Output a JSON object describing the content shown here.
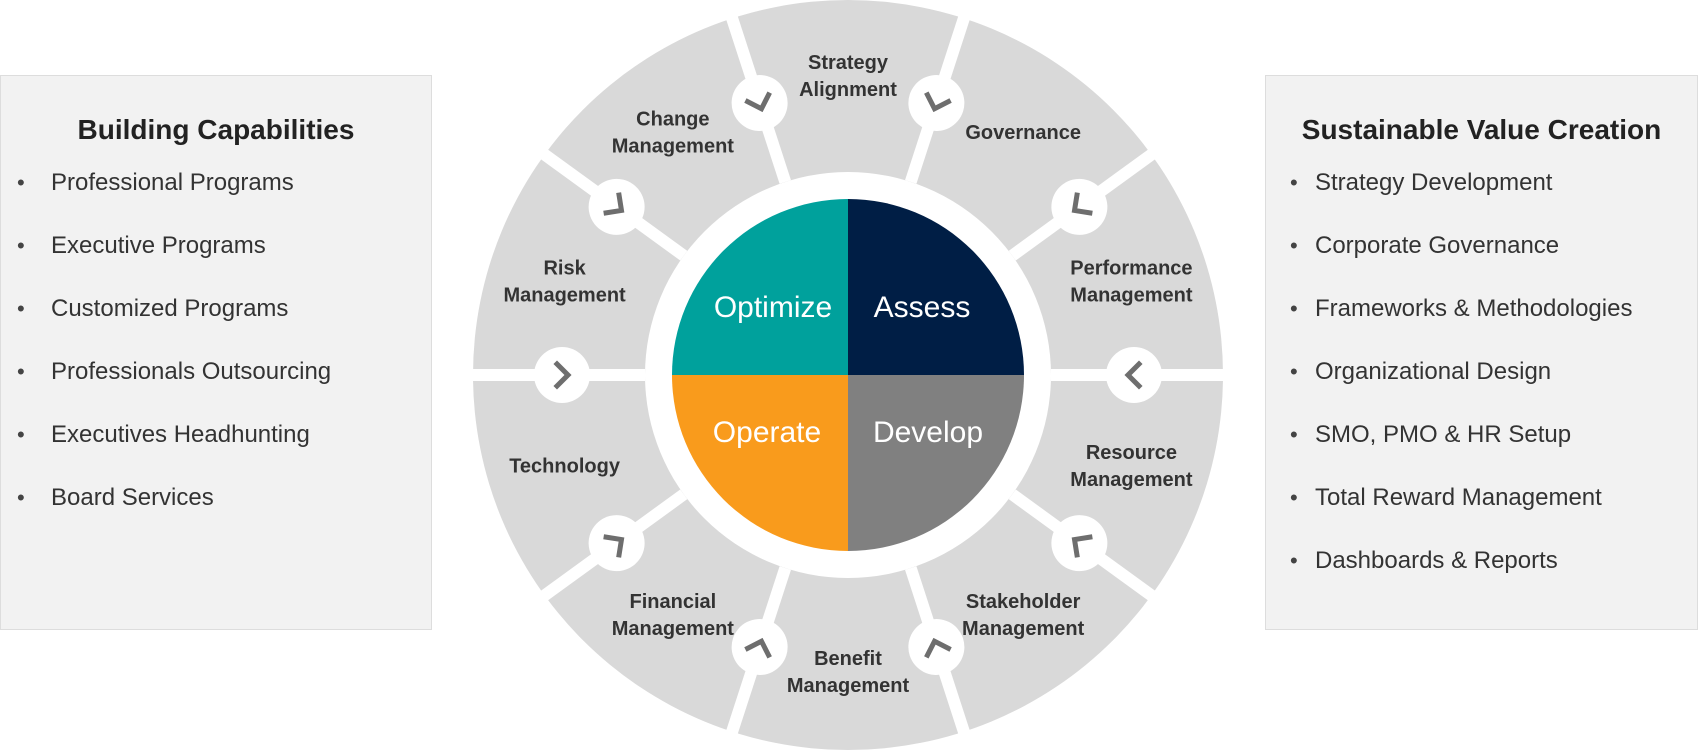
{
  "left_panel": {
    "title": "Building Capabilities",
    "items": [
      "Professional Programs",
      "Executive Programs",
      "Customized Programs",
      "Professionals Outsourcing",
      "Executives Headhunting",
      "Board Services"
    ]
  },
  "right_panel": {
    "title": "Sustainable Value Creation",
    "items": [
      "Strategy Development",
      "Corporate Governance",
      "Frameworks & Methodologies",
      "Organizational Design",
      "SMO, PMO & HR Setup",
      "Total Reward Management",
      "Dashboards & Reports"
    ]
  },
  "bullet_char": "•",
  "wheel": {
    "segments": [
      {
        "lines": [
          "Strategy",
          "Alignment"
        ]
      },
      {
        "lines": [
          "Governance"
        ]
      },
      {
        "lines": [
          "Performance",
          "Management"
        ]
      },
      {
        "lines": [
          "Resource",
          "Management"
        ]
      },
      {
        "lines": [
          "Stakeholder",
          "Management"
        ]
      },
      {
        "lines": [
          "Benefit",
          "Management"
        ]
      },
      {
        "lines": [
          "Financial",
          "Management"
        ]
      },
      {
        "lines": [
          "Technology"
        ]
      },
      {
        "lines": [
          "Risk",
          "Management"
        ]
      },
      {
        "lines": [
          "Change",
          "Management"
        ]
      }
    ],
    "core": [
      {
        "label": "Assess",
        "color": "#001e45"
      },
      {
        "label": "Develop",
        "color": "#808080"
      },
      {
        "label": "Operate",
        "color": "#f99b1c"
      },
      {
        "label": "Optimize",
        "color": "#00a19c"
      }
    ],
    "ring_color": "#d9d9d9",
    "arrow_color": "#6e6e6e"
  }
}
